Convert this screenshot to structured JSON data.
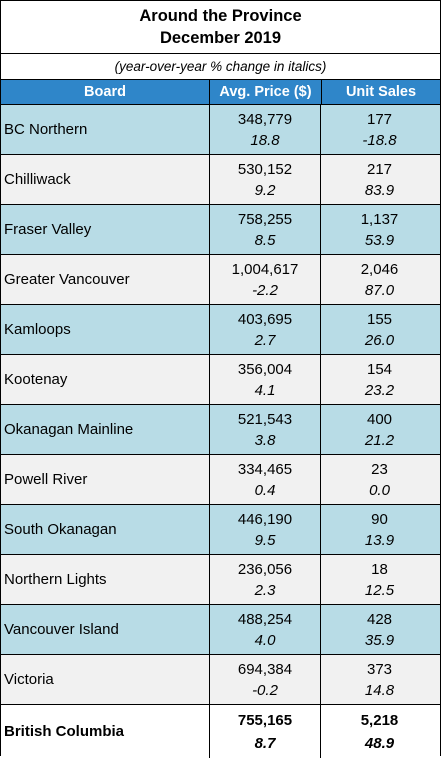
{
  "title_line1": "Around the Province",
  "title_line2": "December 2019",
  "subtitle": "(year-over-year % change in italics)",
  "headers": {
    "board": "Board",
    "avg_price": "Avg. Price ($)",
    "unit_sales": "Unit Sales"
  },
  "rows": [
    {
      "board": "BC Northern",
      "avg_price": "348,779",
      "avg_price_change": "18.8",
      "unit_sales": "177",
      "unit_sales_change": "-18.8"
    },
    {
      "board": "Chilliwack",
      "avg_price": "530,152",
      "avg_price_change": "9.2",
      "unit_sales": "217",
      "unit_sales_change": "83.9"
    },
    {
      "board": "Fraser Valley",
      "avg_price": "758,255",
      "avg_price_change": "8.5",
      "unit_sales": "1,137",
      "unit_sales_change": "53.9"
    },
    {
      "board": "Greater Vancouver",
      "avg_price": "1,004,617",
      "avg_price_change": "-2.2",
      "unit_sales": "2,046",
      "unit_sales_change": "87.0"
    },
    {
      "board": "Kamloops",
      "avg_price": "403,695",
      "avg_price_change": "2.7",
      "unit_sales": "155",
      "unit_sales_change": "26.0"
    },
    {
      "board": "Kootenay",
      "avg_price": "356,004",
      "avg_price_change": "4.1",
      "unit_sales": "154",
      "unit_sales_change": "23.2"
    },
    {
      "board": "Okanagan Mainline",
      "avg_price": "521,543",
      "avg_price_change": "3.8",
      "unit_sales": "400",
      "unit_sales_change": "21.2"
    },
    {
      "board": "Powell River",
      "avg_price": "334,465",
      "avg_price_change": "0.4",
      "unit_sales": "23",
      "unit_sales_change": "0.0"
    },
    {
      "board": "South Okanagan",
      "avg_price": "446,190",
      "avg_price_change": "9.5",
      "unit_sales": "90",
      "unit_sales_change": "13.9"
    },
    {
      "board": "Northern Lights",
      "avg_price": "236,056",
      "avg_price_change": "2.3",
      "unit_sales": "18",
      "unit_sales_change": "12.5"
    },
    {
      "board": "Vancouver Island",
      "avg_price": "488,254",
      "avg_price_change": "4.0",
      "unit_sales": "428",
      "unit_sales_change": "35.9"
    },
    {
      "board": "Victoria",
      "avg_price": "694,384",
      "avg_price_change": "-0.2",
      "unit_sales": "373",
      "unit_sales_change": "14.8"
    }
  ],
  "total": {
    "board": "British Columbia",
    "avg_price": "755,165",
    "avg_price_change": "8.7",
    "unit_sales": "5,218",
    "unit_sales_change": "48.9"
  },
  "colors": {
    "header": "#2f86c9",
    "row_blue": "#b8dce6",
    "row_grey": "#f1f1f1"
  }
}
